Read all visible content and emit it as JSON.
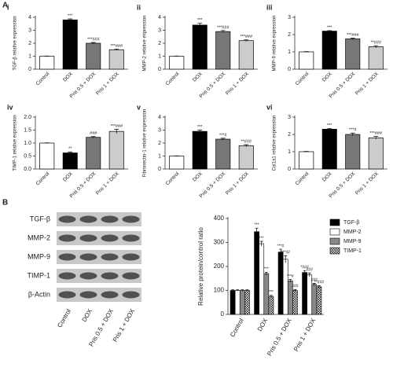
{
  "panel_a_label": "A",
  "panel_b_label": "B",
  "blot": {
    "proteins": [
      "TGF-β",
      "MMP-2",
      "MMP-9",
      "TIMP-1",
      "β-Actin"
    ],
    "lanes": [
      "Control",
      "DOX",
      "Pris 0.5 + DOX",
      "Pris 1 + DOX"
    ]
  },
  "chart_data": [
    {
      "type": "bar",
      "panel": "i",
      "y_label": "TGF-β relative expression",
      "categories": [
        "Control",
        "DOX",
        "Pris 0.5 + DOX",
        "Pris 1 + DOX"
      ],
      "values": [
        1,
        3.8,
        2.0,
        1.5
      ],
      "errors": [
        0.02,
        0.08,
        0.06,
        0.05
      ],
      "annotations": [
        null,
        "***",
        "***###",
        "***###"
      ],
      "colors": [
        "#ffffff",
        "#000000",
        "#777777",
        "#cccccc"
      ],
      "ylim": [
        0,
        4
      ],
      "yticks": [
        0,
        1,
        2,
        3,
        4
      ]
    },
    {
      "type": "bar",
      "panel": "ii",
      "y_label": "MMP-2 relative expression",
      "categories": [
        "Control",
        "DOX",
        "Pris 0.5 + DOX",
        "Pris 1 + DOX"
      ],
      "values": [
        1,
        3.4,
        2.9,
        2.2
      ],
      "errors": [
        0.02,
        0.15,
        0.08,
        0.06
      ],
      "annotations": [
        null,
        "***",
        "***###",
        "***###"
      ],
      "colors": [
        "#ffffff",
        "#000000",
        "#777777",
        "#cccccc"
      ],
      "ylim": [
        0,
        4
      ],
      "yticks": [
        0,
        1,
        2,
        3,
        4
      ]
    },
    {
      "type": "bar",
      "panel": "iii",
      "y_label": "MMP-9 relative expression",
      "categories": [
        "Control",
        "DOX",
        "Pris 0.5 + DOX",
        "Pris 1 + DOX"
      ],
      "values": [
        1,
        2.2,
        1.75,
        1.3
      ],
      "errors": [
        0.02,
        0.03,
        0.04,
        0.06
      ],
      "annotations": [
        null,
        "***",
        "***###",
        "**###"
      ],
      "colors": [
        "#ffffff",
        "#000000",
        "#777777",
        "#cccccc"
      ],
      "ylim": [
        0,
        3
      ],
      "yticks": [
        0,
        1,
        2,
        3
      ]
    },
    {
      "type": "bar",
      "panel": "iv",
      "y_label": "TIMP-1 relative expression",
      "categories": [
        "Control",
        "DOX",
        "Pris 0.5 + DOX",
        "Pris 1 + DOX"
      ],
      "values": [
        1,
        0.62,
        1.22,
        1.45
      ],
      "errors": [
        0.01,
        0.04,
        0.03,
        0.08
      ],
      "annotations": [
        null,
        "**",
        "###",
        "***###"
      ],
      "colors": [
        "#ffffff",
        "#000000",
        "#777777",
        "#cccccc"
      ],
      "ylim": [
        0,
        2
      ],
      "yticks": [
        {
          "value": 0,
          "label": "0.0"
        },
        {
          "value": 0.5,
          "label": "0.5"
        },
        {
          "value": 1,
          "label": "1.0"
        },
        {
          "value": 1.5,
          "label": "1.5"
        },
        {
          "value": 2,
          "label": "2.0"
        }
      ]
    },
    {
      "type": "bar",
      "panel": "v",
      "y_label": "Fibronectin-1 relative expression",
      "categories": [
        "Control",
        "DOX",
        "Pris 0.5 + DOX",
        "Pris 1 + DOX"
      ],
      "values": [
        1,
        2.9,
        2.3,
        1.8
      ],
      "errors": [
        0.02,
        0.1,
        0.07,
        0.08
      ],
      "annotations": [
        null,
        "***",
        "***#",
        "**###"
      ],
      "colors": [
        "#ffffff",
        "#000000",
        "#777777",
        "#cccccc"
      ],
      "ylim": [
        0,
        4
      ],
      "yticks": [
        0,
        1,
        2,
        3,
        4
      ]
    },
    {
      "type": "bar",
      "panel": "vi",
      "y_label": "Col1a1 relative expression",
      "categories": [
        "Control",
        "DOX",
        "Pris 0.5 + DOX",
        "Pris 1 + DOX"
      ],
      "values": [
        1,
        2.3,
        2.0,
        1.8
      ],
      "errors": [
        0.02,
        0.05,
        0.08,
        0.08
      ],
      "annotations": [
        null,
        "***",
        "***#",
        "***###"
      ],
      "colors": [
        "#ffffff",
        "#000000",
        "#777777",
        "#cccccc"
      ],
      "ylim": [
        0,
        3
      ],
      "yticks": [
        0,
        1,
        2,
        3
      ]
    },
    {
      "type": "grouped_bar",
      "y_label": "Relative protein/control ratio",
      "categories": [
        "Control",
        "DOX",
        "Pris 0.5 + DOX",
        "Pris 1 + DOX"
      ],
      "legend": "upper right",
      "series": [
        {
          "name": "TGF-β",
          "color": "#000000",
          "values": [
            100,
            345,
            260,
            175
          ],
          "errors": [
            3,
            15,
            12,
            8
          ],
          "annotations": [
            null,
            "***",
            "***#",
            "*###"
          ]
        },
        {
          "name": "MMP-2",
          "color": "#ffffff",
          "values": [
            100,
            295,
            230,
            165
          ],
          "errors": [
            3,
            10,
            15,
            8
          ],
          "annotations": [
            null,
            "***",
            "***##",
            "###"
          ]
        },
        {
          "name": "MMP-9",
          "color": "#888888",
          "values": [
            100,
            170,
            140,
            125
          ],
          "errors": [
            3,
            6,
            6,
            5
          ],
          "annotations": [
            null,
            "***",
            "***#",
            "###"
          ]
        },
        {
          "name": "TIMP-1",
          "color": "#ffffff",
          "hatch": true,
          "values": [
            100,
            75,
            100,
            115
          ],
          "errors": [
            3,
            4,
            4,
            5
          ],
          "annotations": [
            null,
            "***",
            "###",
            "**###"
          ]
        }
      ],
      "ylim": [
        0,
        400
      ],
      "yticks": [
        0,
        100,
        200,
        300,
        400
      ]
    }
  ]
}
